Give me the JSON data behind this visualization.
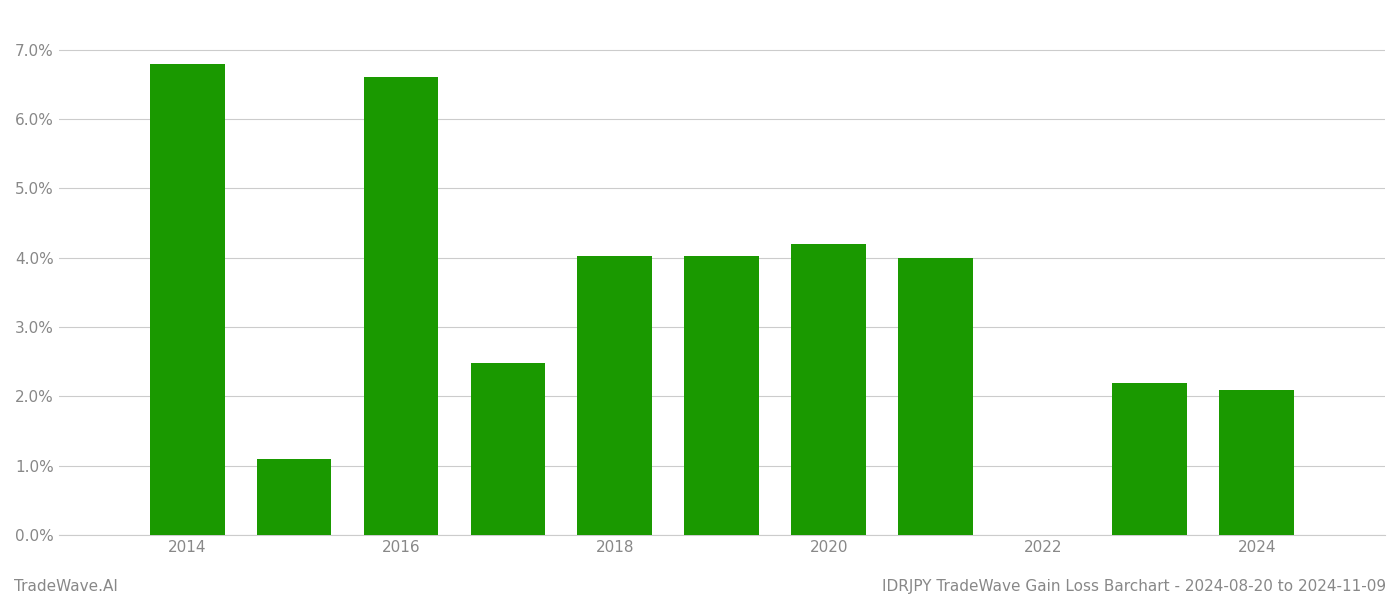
{
  "years": [
    2014,
    2015,
    2016,
    2017,
    2018,
    2019,
    2020,
    2021,
    2022,
    2023,
    2024
  ],
  "values": [
    0.068,
    0.011,
    0.066,
    0.0248,
    0.0403,
    0.0403,
    0.042,
    0.04,
    0.0,
    0.022,
    0.021
  ],
  "bar_color": "#1a9900",
  "title": "IDRJPY TradeWave Gain Loss Barchart - 2024-08-20 to 2024-11-09",
  "watermark": "TradeWave.AI",
  "xlim_left": 2012.8,
  "xlim_right": 2025.2,
  "ylim": [
    0,
    0.075
  ],
  "yticks": [
    0.0,
    0.01,
    0.02,
    0.03,
    0.04,
    0.05,
    0.06,
    0.07
  ],
  "xticks": [
    2014,
    2016,
    2018,
    2020,
    2022,
    2024
  ],
  "xlabel_fontsize": 11,
  "ylabel_fontsize": 11,
  "title_fontsize": 11,
  "watermark_fontsize": 11,
  "background_color": "#ffffff",
  "grid_color": "#cccccc",
  "tick_label_color": "#888888",
  "bar_width": 0.7
}
